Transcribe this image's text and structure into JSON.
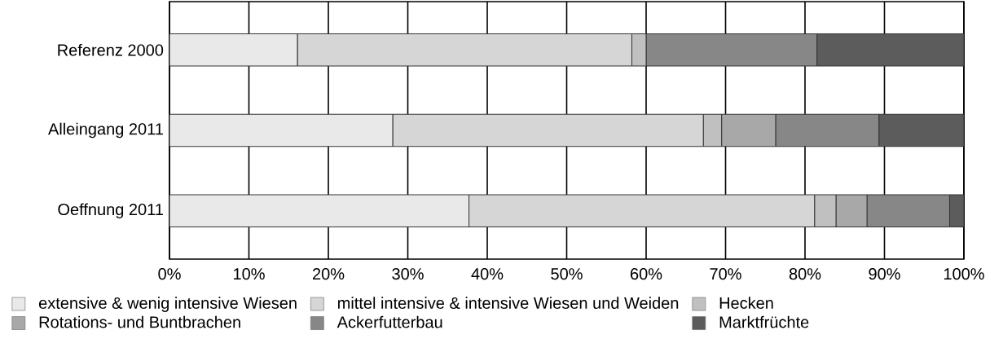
{
  "chart_data": {
    "type": "bar",
    "orientation": "horizontal",
    "stacked": true,
    "categories": [
      "Referenz 2000",
      "Alleingang 2011",
      "Oeffnung 2011"
    ],
    "series": [
      {
        "name": "extensive & wenig intensive Wiesen",
        "color": "#e9e9e9",
        "values": [
          16.1,
          28.1,
          37.7
        ]
      },
      {
        "name": "mittel intensive & intensive Wiesen und Weiden",
        "color": "#d6d6d6",
        "values": [
          42.1,
          39.1,
          43.5
        ]
      },
      {
        "name": "Hecken",
        "color": "#c0c0c0",
        "values": [
          1.8,
          2.3,
          2.7
        ]
      },
      {
        "name": "Rotations- und Buntbrachen",
        "color": "#a8a8a8",
        "values": [
          0,
          6.8,
          3.9
        ]
      },
      {
        "name": "Ackerfutterbau",
        "color": "#878787",
        "values": [
          21.5,
          13.0,
          10.4
        ]
      },
      {
        "name": "Marktfrüchte",
        "color": "#5c5c5c",
        "values": [
          18.5,
          10.7,
          1.8
        ]
      }
    ],
    "xlim": [
      0,
      100
    ],
    "xticks": [
      {
        "value": 0,
        "label": "0%"
      },
      {
        "value": 10,
        "label": "10%"
      },
      {
        "value": 20,
        "label": "20%"
      },
      {
        "value": 30,
        "label": "30%"
      },
      {
        "value": 40,
        "label": "40%"
      },
      {
        "value": 50,
        "label": "50%"
      },
      {
        "value": 60,
        "label": "60%"
      },
      {
        "value": 70,
        "label": "70%"
      },
      {
        "value": 80,
        "label": "80%"
      },
      {
        "value": 90,
        "label": "90%"
      },
      {
        "value": 100,
        "label": "100%"
      }
    ],
    "grid": "x",
    "legend": "bottom"
  }
}
